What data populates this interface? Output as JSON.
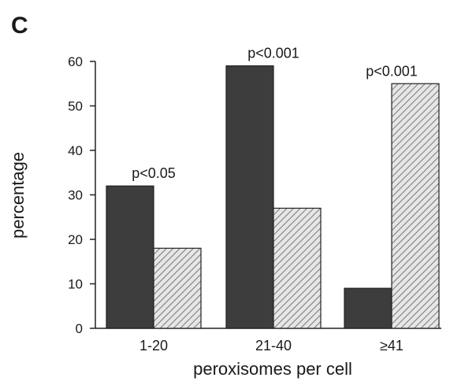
{
  "panel_label": "C",
  "chart_data": {
    "type": "bar",
    "categories": [
      "1-20",
      "21-40",
      "≥41"
    ],
    "series": [
      {
        "values": [
          32,
          59,
          9
        ],
        "color": "#3d3d3d",
        "fill": "solid-dark"
      },
      {
        "values": [
          18,
          27,
          55
        ],
        "color": "#c8c8c8",
        "fill": "diagonal-hatch-light"
      }
    ],
    "xlabel": "peroxisomes per cell",
    "ylabel": "percentage",
    "ylim": [
      0,
      60
    ],
    "yticks": [
      0,
      10,
      20,
      30,
      40,
      50,
      60
    ],
    "annotations": [
      "p<0.05",
      "p<0.001",
      "p<0.001"
    ],
    "grid": false,
    "legend": "none"
  }
}
